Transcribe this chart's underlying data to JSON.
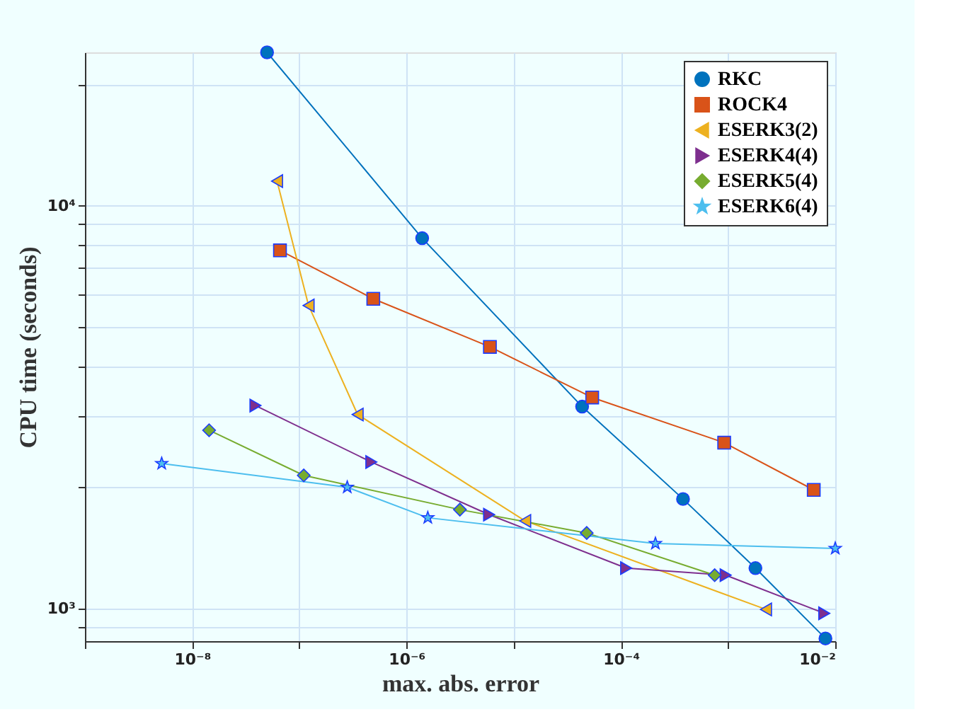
{
  "chart_data": {
    "type": "line",
    "xlabel": "max. abs. error",
    "ylabel": "CPU time (seconds)",
    "log": "xy",
    "grid": true,
    "legend": "top right",
    "xlim": [
      1e-09,
      0.01
    ],
    "ylim": [
      830,
      24000
    ],
    "xticks": [
      {
        "value": 1e-09,
        "label": null
      },
      {
        "value": 1e-08,
        "label": "10⁻⁸"
      },
      {
        "value": 1e-07,
        "label": null
      },
      {
        "value": 1e-06,
        "label": "10⁻⁶"
      },
      {
        "value": 1e-05,
        "label": null
      },
      {
        "value": 0.0001,
        "label": "10⁻⁴"
      },
      {
        "value": 0.001,
        "label": null
      },
      {
        "value": 0.01,
        "label": "10⁻²"
      }
    ],
    "yticks": [
      {
        "value": 900,
        "label": null
      },
      {
        "value": 1000,
        "label": "10³"
      },
      {
        "value": 2000,
        "label": null
      },
      {
        "value": 3000,
        "label": null
      },
      {
        "value": 4000,
        "label": null
      },
      {
        "value": 5000,
        "label": null
      },
      {
        "value": 6000,
        "label": null
      },
      {
        "value": 7000,
        "label": null
      },
      {
        "value": 8000,
        "label": null
      },
      {
        "value": 9000,
        "label": null
      },
      {
        "value": 10000,
        "label": "10⁴"
      },
      {
        "value": 20000,
        "label": null
      }
    ],
    "series": [
      {
        "name": "RKC",
        "color": "#0072bd",
        "marker": "circle",
        "x": [
          5e-08,
          1.4e-06,
          4.35e-05,
          0.00038,
          0.0018,
          0.0081
        ],
        "values": [
          24000,
          8300,
          3170,
          1870,
          1260,
          843
        ]
      },
      {
        "name": "ROCK4",
        "color": "#d95319",
        "marker": "square",
        "x": [
          6.6e-08,
          4.9e-07,
          6e-06,
          5.4e-05,
          0.00092,
          0.0063
        ],
        "values": [
          7740,
          5870,
          4460,
          3340,
          2580,
          1970
        ]
      },
      {
        "name": "ESERK3(2)",
        "color": "#edb120",
        "marker": "triangle-left",
        "x": [
          6.2e-08,
          1.22e-07,
          3.5e-07,
          1.28e-05,
          0.00226
        ],
        "values": [
          11500,
          5650,
          3030,
          1650,
          995
        ]
      },
      {
        "name": "ESERK4(4)",
        "color": "#7e2f8e",
        "marker": "triangle-right",
        "x": [
          3.9e-08,
          4.7e-07,
          5.9e-06,
          0.000112,
          0.00095,
          0.0079
        ],
        "values": [
          3190,
          2310,
          1710,
          1260,
          1210,
          973
        ]
      },
      {
        "name": "ESERK5(4)",
        "color": "#77ac30",
        "marker": "diamond",
        "x": [
          1.44e-08,
          1.1e-07,
          3.15e-06,
          4.8e-05,
          0.00075
        ],
        "values": [
          2770,
          2140,
          1760,
          1540,
          1210
        ]
      },
      {
        "name": "ESERK6(4)",
        "color": "#4dbeee",
        "marker": "star",
        "x": [
          5.2e-09,
          2.8e-07,
          1.58e-06,
          0.00021,
          0.01
        ],
        "values": [
          2290,
          2000,
          1680,
          1450,
          1410
        ]
      }
    ]
  }
}
